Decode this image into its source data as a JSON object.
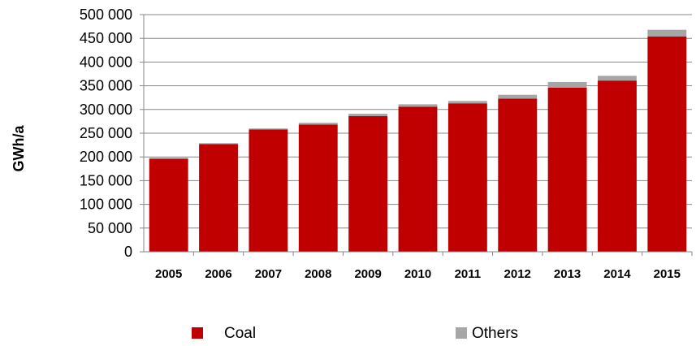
{
  "chart_data": {
    "type": "bar",
    "stacked": true,
    "title": "",
    "xlabel": "",
    "ylabel": "GWh/a",
    "categories": [
      "2005",
      "2006",
      "2007",
      "2008",
      "2009",
      "2010",
      "2011",
      "2012",
      "2013",
      "2014",
      "2015"
    ],
    "series": [
      {
        "name": "Coal",
        "color": "#c00000",
        "values": [
          196000,
          227000,
          258000,
          268000,
          286000,
          306000,
          313000,
          323000,
          346000,
          361000,
          454000
        ]
      },
      {
        "name": "Others",
        "color": "#a6a6a6",
        "values": [
          2000,
          2000,
          2000,
          4000,
          5000,
          5000,
          5000,
          8000,
          12000,
          10000,
          14000
        ]
      }
    ],
    "ylim": [
      0,
      500000
    ],
    "yticks": [
      0,
      50000,
      100000,
      150000,
      200000,
      250000,
      300000,
      350000,
      400000,
      450000,
      500000
    ],
    "ytick_labels": [
      "0",
      "50 000",
      "100 000",
      "150 000",
      "200 000",
      "250 000",
      "300 000",
      "350 000",
      "400 000",
      "450 000",
      "500 000"
    ],
    "grid": true,
    "legend_position": "bottom"
  }
}
